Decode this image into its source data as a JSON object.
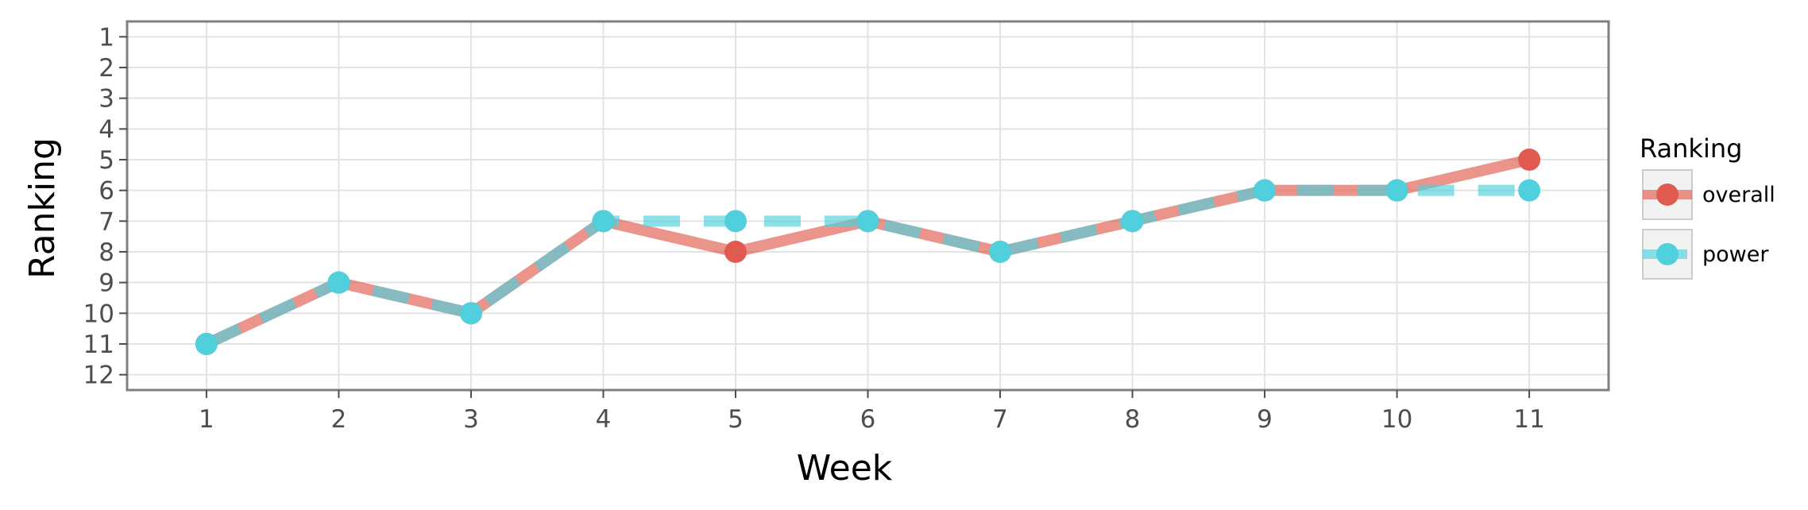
{
  "chart_data": {
    "type": "line",
    "x": [
      1,
      2,
      3,
      4,
      5,
      6,
      7,
      8,
      9,
      10,
      11
    ],
    "xlabel": "Week",
    "ylabel": "Ranking",
    "xticks": [
      "1",
      "2",
      "3",
      "4",
      "5",
      "6",
      "7",
      "8",
      "9",
      "10",
      "11"
    ],
    "yticks": [
      "1",
      "2",
      "3",
      "4",
      "5",
      "6",
      "7",
      "8",
      "9",
      "10",
      "11",
      "12"
    ],
    "xlim": [
      0.4,
      11.6
    ],
    "ylim": [
      12.5,
      0.5
    ],
    "y_reversed": true,
    "grid": true,
    "series": [
      {
        "name": "overall",
        "values": [
          11,
          9,
          10,
          7,
          8,
          7,
          8,
          7,
          6,
          6,
          5
        ],
        "color": "#e05a4f",
        "line_style": "solid"
      },
      {
        "name": "power",
        "values": [
          11,
          9,
          10,
          7,
          7,
          7,
          8,
          7,
          6,
          6,
          6
        ],
        "color": "#4fd0dc",
        "line_style": "dashed"
      }
    ],
    "legend": {
      "title": "Ranking",
      "placement": "right"
    }
  }
}
